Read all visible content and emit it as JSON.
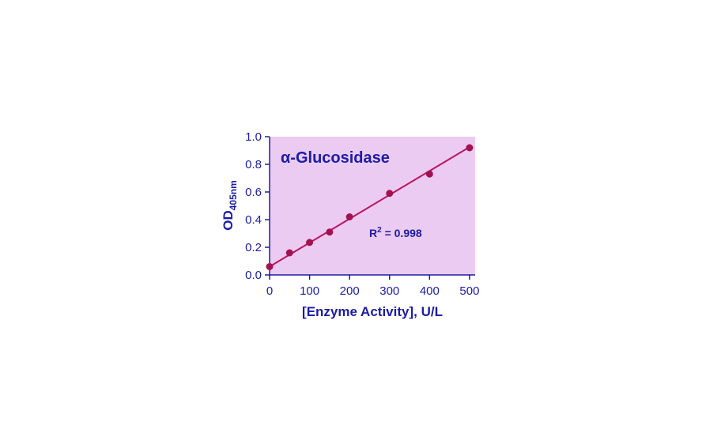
{
  "chart_data": {
    "type": "scatter",
    "title": "α-Glucosidase",
    "annotation": {
      "base": "R",
      "sup": "2",
      "rest": " = 0.998"
    },
    "x_label": "[Enzyme Activity], U/L",
    "y_label": {
      "base": "OD",
      "sub": "405nm"
    },
    "x": [
      0,
      50,
      100,
      150,
      200,
      300,
      400,
      500
    ],
    "values": [
      0.06,
      0.16,
      0.235,
      0.31,
      0.42,
      0.59,
      0.73,
      0.92
    ],
    "color": "#a3124f",
    "fit": {
      "x": [
        0,
        500
      ],
      "values": [
        0.06,
        0.925
      ],
      "color": "#b8175e"
    },
    "background": "#eccbf2",
    "axis_color": "#1c1ca6",
    "xlim": [
      0,
      514
    ],
    "ylim": [
      0,
      1
    ],
    "xticks": [
      0,
      100,
      200,
      300,
      400,
      500
    ],
    "yticks": [
      {
        "value": 0,
        "label": "0.0"
      },
      0.2,
      0.4,
      0.6,
      0.8,
      {
        "value": 1,
        "label": "1.0"
      }
    ]
  }
}
